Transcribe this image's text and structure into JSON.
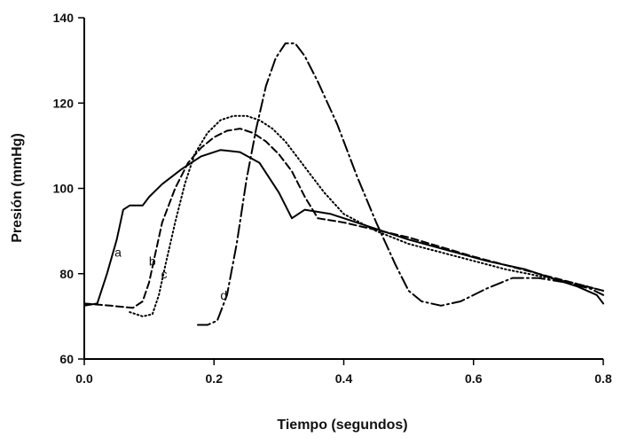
{
  "chart_data": {
    "type": "line",
    "title": "",
    "xlabel": "Tiempo (segundos)",
    "ylabel": "Presión (mmHg)",
    "xlim": [
      0,
      0.8
    ],
    "ylim": [
      60,
      140
    ],
    "xticks": [
      0.0,
      0.2,
      0.4,
      0.6,
      0.8
    ],
    "xtick_labels": [
      "0.0",
      "0.2",
      "0.4",
      "0.6",
      "0.8"
    ],
    "yticks": [
      60,
      80,
      100,
      120,
      140
    ],
    "ytick_labels": [
      "60",
      "80",
      "100",
      "120",
      "140"
    ],
    "grid": false,
    "legend": "none",
    "series": [
      {
        "label": "a",
        "label_at": [
          0.052,
          85
        ],
        "line_style": "solid",
        "color": "#000000",
        "x": [
          0.0,
          0.02,
          0.035,
          0.05,
          0.06,
          0.07,
          0.08,
          0.09,
          0.1,
          0.12,
          0.15,
          0.18,
          0.21,
          0.24,
          0.27,
          0.3,
          0.32,
          0.34,
          0.38,
          0.44,
          0.5,
          0.56,
          0.62,
          0.68,
          0.72,
          0.76,
          0.79,
          0.8
        ],
        "y": [
          72.5,
          73,
          80,
          88,
          95,
          96,
          96,
          96,
          98,
          101,
          104.5,
          107.5,
          109,
          108.5,
          106,
          99,
          93,
          95,
          94,
          91,
          88,
          85.5,
          83,
          81,
          79,
          77,
          75,
          73
        ]
      },
      {
        "label": "b",
        "label_at": [
          0.105,
          83
        ],
        "line_style": "dashed",
        "color": "#000000",
        "x": [
          0.0,
          0.04,
          0.075,
          0.09,
          0.1,
          0.11,
          0.12,
          0.14,
          0.16,
          0.18,
          0.2,
          0.22,
          0.24,
          0.26,
          0.28,
          0.3,
          0.32,
          0.34,
          0.36,
          0.4,
          0.5,
          0.6,
          0.7,
          0.8
        ],
        "y": [
          73,
          72.5,
          72,
          73.5,
          78,
          85,
          92,
          100,
          106,
          109.5,
          112,
          113.5,
          114,
          113,
          111,
          108,
          104,
          98,
          93,
          92,
          88.5,
          84,
          80,
          76
        ]
      },
      {
        "label": "c",
        "label_at": [
          0.123,
          80
        ],
        "line_style": "dotted",
        "color": "#000000",
        "x": [
          0.07,
          0.09,
          0.105,
          0.115,
          0.125,
          0.14,
          0.155,
          0.17,
          0.19,
          0.21,
          0.23,
          0.25,
          0.27,
          0.29,
          0.31,
          0.33,
          0.35,
          0.37,
          0.4,
          0.45,
          0.5,
          0.55,
          0.6,
          0.65,
          0.7,
          0.75,
          0.8
        ],
        "y": [
          71,
          70,
          70.5,
          75,
          82,
          92,
          101,
          108,
          113,
          116,
          117,
          117,
          116,
          114,
          111,
          107,
          103,
          99,
          94,
          90,
          87,
          85,
          83,
          81,
          79.5,
          78,
          76
        ]
      },
      {
        "label": "d",
        "label_at": [
          0.215,
          75
        ],
        "line_style": "dash-dot",
        "color": "#000000",
        "x": [
          0.175,
          0.19,
          0.205,
          0.22,
          0.235,
          0.25,
          0.265,
          0.28,
          0.295,
          0.31,
          0.325,
          0.34,
          0.36,
          0.39,
          0.42,
          0.45,
          0.48,
          0.5,
          0.52,
          0.55,
          0.58,
          0.62,
          0.66,
          0.7,
          0.74,
          0.78,
          0.8
        ],
        "y": [
          68,
          68,
          69,
          75,
          87,
          102,
          114,
          124,
          130.5,
          134,
          134,
          131,
          125,
          115,
          103,
          92,
          82,
          76,
          73.5,
          72.5,
          73.5,
          76.5,
          79,
          79,
          78,
          76.5,
          75
        ]
      }
    ]
  }
}
